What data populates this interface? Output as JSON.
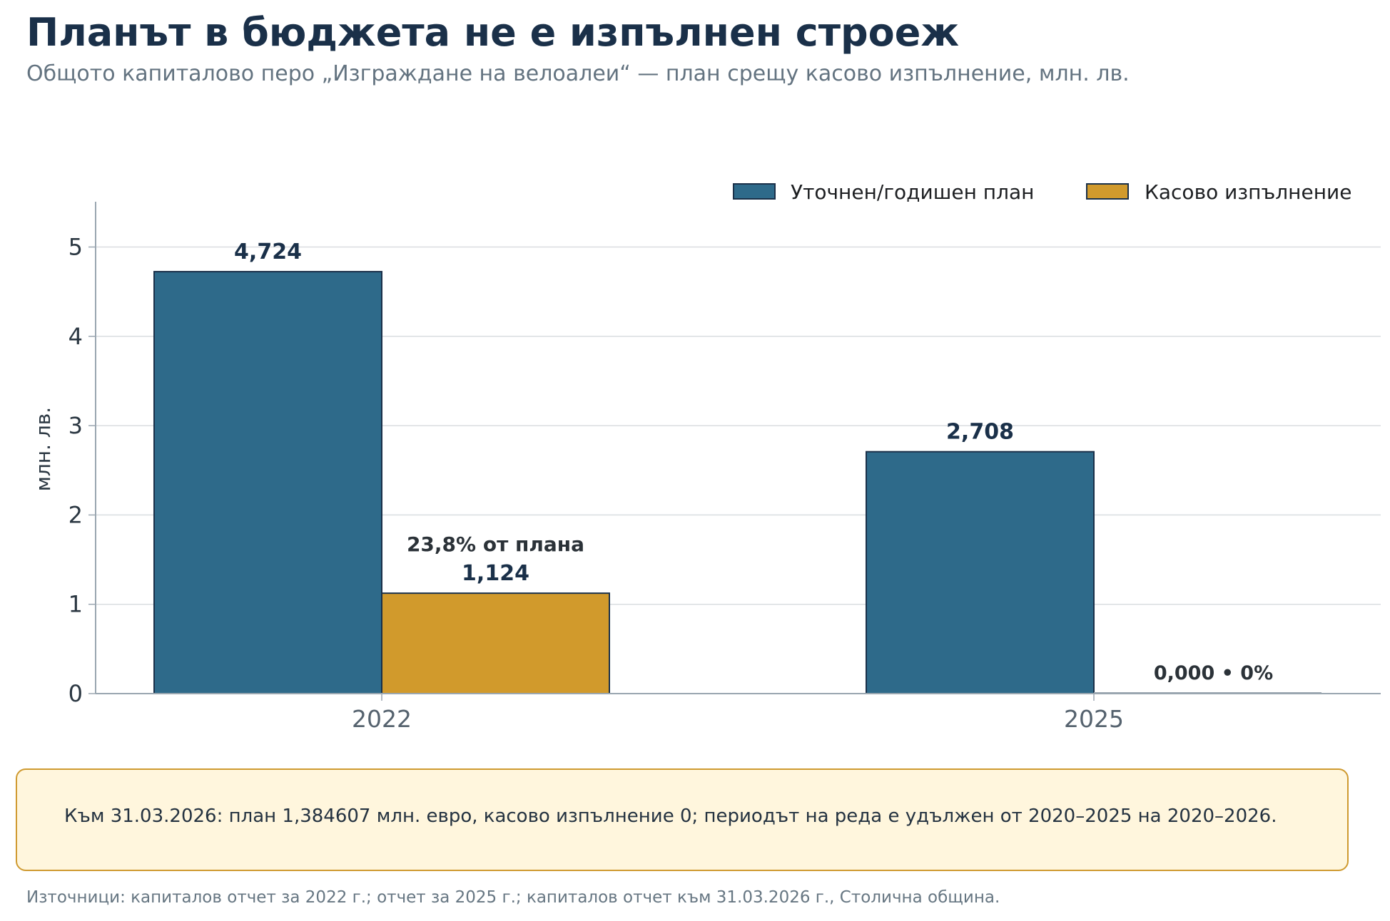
{
  "title": "Планът в бюджета не е изпълнен строеж",
  "subtitle": "Общото капиталово перо „Изграждане на велоалеи“ — план срещу касово изпълнение, млн. лв.",
  "chart_data": {
    "type": "bar",
    "categories": [
      "2022",
      "2025"
    ],
    "series": [
      {
        "name": "Уточнен/годишен план",
        "values": [
          4.724,
          2.708
        ],
        "labels": [
          "4,724",
          "2,708"
        ],
        "color": "#2e6a8a"
      },
      {
        "name": "Касово изпълнение",
        "values": [
          1.124,
          0.0
        ],
        "labels": [
          "1,124",
          "0,000  •  0%"
        ],
        "color": "#d19a2c"
      }
    ],
    "annotations": [
      {
        "category": "2022",
        "series": "Касово изпълнение",
        "text": "23,8% от плана"
      }
    ],
    "ylabel": "млн. лв.",
    "ylim": [
      0,
      5.5
    ],
    "yticks": [
      {
        "value": 0,
        "label": "0"
      },
      {
        "value": 1,
        "label": "1"
      },
      {
        "value": 2,
        "label": "2"
      },
      {
        "value": 3,
        "label": "3"
      },
      {
        "value": 4,
        "label": "4"
      },
      {
        "value": 5,
        "label": "5"
      }
    ],
    "grid": true,
    "legend_position": "top-right"
  },
  "note": "Към 31.03.2026: план 1,384607 млн. евро, касово изпълнение 0; периодът на реда е удължен от 2020–2025 на 2020–2026.",
  "source": "Източници: капиталов отчет за 2022 г.; отчет за 2025 г.; капиталов отчет към 31.03.2026 г., Столична община.",
  "colors": {
    "title": "#1a3049",
    "axis": "#9aa6b0",
    "grid": "#d9dde0",
    "bar_edge": "#1a3049",
    "note_bg": "#fff6dd",
    "note_border": "#cf9a30"
  }
}
